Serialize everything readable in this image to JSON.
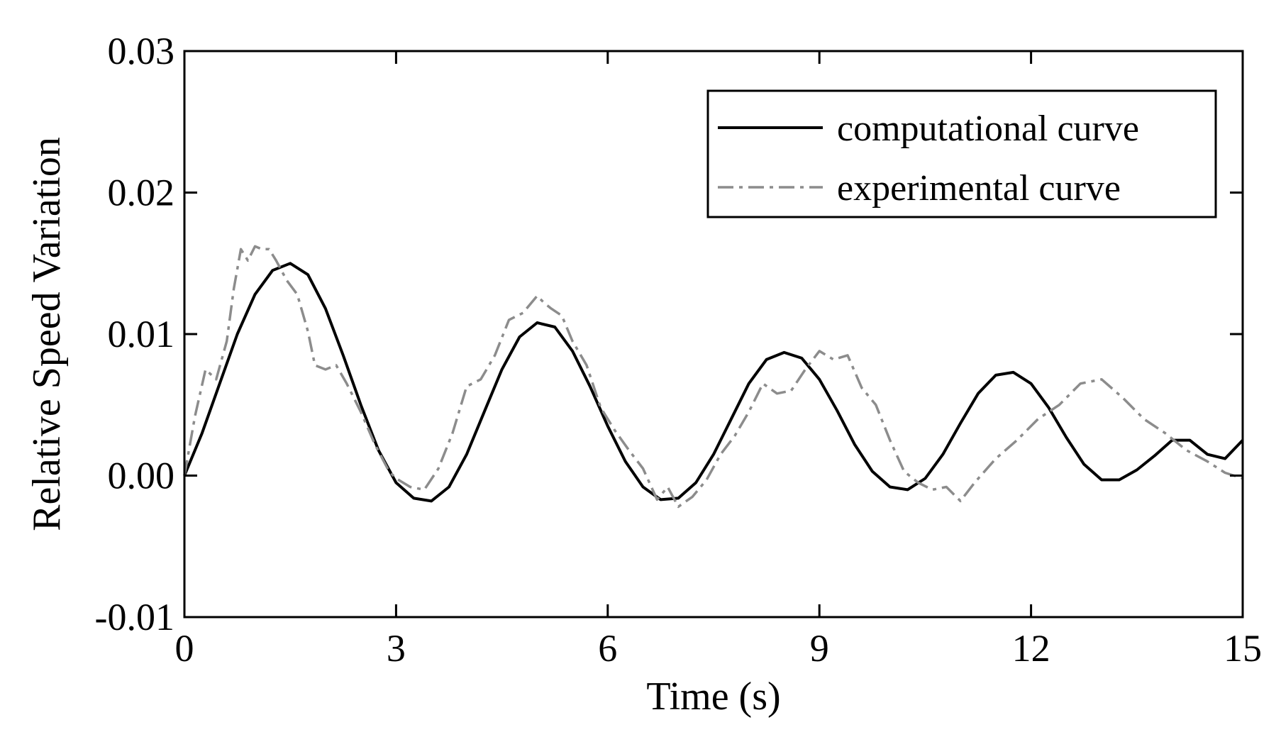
{
  "chart_data": {
    "type": "line",
    "title": "",
    "xlabel": "Time (s)",
    "ylabel": "Relative Speed Variation",
    "xlim": [
      0,
      15
    ],
    "ylim": [
      -0.01,
      0.03
    ],
    "x_ticks": [
      0,
      3,
      6,
      9,
      12,
      15
    ],
    "x_tick_labels": [
      "0",
      "3",
      "6",
      "9",
      "12",
      "15"
    ],
    "y_ticks": [
      -0.01,
      0.0,
      0.01,
      0.02,
      0.03
    ],
    "y_tick_labels": [
      "-0.01",
      "0.00",
      "0.01",
      "0.02",
      "0.03"
    ],
    "grid": false,
    "legend_position": "top-right",
    "series": [
      {
        "name": "computational curve",
        "style": "solid",
        "color": "#000000",
        "x": [
          0,
          0.25,
          0.5,
          0.75,
          1.0,
          1.25,
          1.5,
          1.75,
          2.0,
          2.25,
          2.5,
          2.75,
          3.0,
          3.25,
          3.5,
          3.75,
          4.0,
          4.25,
          4.5,
          4.75,
          5.0,
          5.25,
          5.5,
          5.75,
          6.0,
          6.25,
          6.5,
          6.75,
          7.0,
          7.25,
          7.5,
          7.75,
          8.0,
          8.25,
          8.5,
          8.75,
          9.0,
          9.25,
          9.5,
          9.75,
          10.0,
          10.25,
          10.5,
          10.75,
          11.0,
          11.25,
          11.5,
          11.75,
          12.0,
          12.25,
          12.5,
          12.75,
          13.0,
          13.25,
          13.5,
          13.75,
          14.0,
          14.25,
          14.5,
          14.75,
          15.0
        ],
        "y": [
          0.0,
          0.003,
          0.0065,
          0.01,
          0.0128,
          0.0145,
          0.015,
          0.0142,
          0.0118,
          0.0085,
          0.005,
          0.0018,
          -0.0005,
          -0.0016,
          -0.0018,
          -0.0008,
          0.0015,
          0.0045,
          0.0075,
          0.0098,
          0.0108,
          0.0105,
          0.0088,
          0.0063,
          0.0035,
          0.001,
          -0.0008,
          -0.0017,
          -0.0016,
          -0.0005,
          0.0015,
          0.004,
          0.0065,
          0.0082,
          0.0087,
          0.0083,
          0.0068,
          0.0046,
          0.0022,
          0.0003,
          -0.0008,
          -0.001,
          -0.0002,
          0.0015,
          0.0037,
          0.0058,
          0.0071,
          0.0073,
          0.0065,
          0.0048,
          0.0027,
          0.0008,
          -0.0003,
          -0.0003,
          0.0004,
          0.0014,
          0.0025,
          0.0025,
          0.0015,
          0.0012,
          0.0025
        ]
      },
      {
        "name": "experimental curve",
        "style": "dash-dot",
        "color": "#8c8c8c",
        "x": [
          0,
          0.15,
          0.3,
          0.45,
          0.6,
          0.7,
          0.8,
          0.9,
          1.0,
          1.1,
          1.2,
          1.3,
          1.45,
          1.6,
          1.75,
          1.85,
          2.0,
          2.15,
          2.3,
          2.5,
          2.7,
          2.9,
          3.0,
          3.2,
          3.4,
          3.6,
          3.8,
          4.0,
          4.2,
          4.4,
          4.6,
          4.8,
          5.0,
          5.1,
          5.2,
          5.35,
          5.5,
          5.7,
          5.9,
          6.1,
          6.3,
          6.5,
          6.7,
          6.85,
          7.0,
          7.2,
          7.4,
          7.6,
          7.8,
          8.0,
          8.2,
          8.4,
          8.6,
          8.8,
          9.0,
          9.2,
          9.4,
          9.6,
          9.8,
          10.0,
          10.2,
          10.4,
          10.6,
          10.8,
          11.0,
          11.2,
          11.5,
          11.8,
          12.1,
          12.4,
          12.7,
          13.0,
          13.3,
          13.6,
          13.9,
          14.2,
          14.5,
          14.75,
          15.0
        ],
        "y": [
          0.0,
          0.0042,
          0.0075,
          0.0068,
          0.0095,
          0.0132,
          0.016,
          0.0152,
          0.0162,
          0.016,
          0.016,
          0.0152,
          0.0138,
          0.0128,
          0.0102,
          0.0078,
          0.0075,
          0.0078,
          0.0065,
          0.0045,
          0.0022,
          0.0003,
          -0.0002,
          -0.0008,
          -0.001,
          0.0005,
          0.003,
          0.0063,
          0.0068,
          0.0085,
          0.011,
          0.0115,
          0.0127,
          0.0122,
          0.0118,
          0.0113,
          0.0095,
          0.0078,
          0.0048,
          0.0032,
          0.0018,
          0.0005,
          -0.0017,
          -0.0008,
          -0.0022,
          -0.0015,
          -0.0003,
          0.0015,
          0.0028,
          0.0045,
          0.0065,
          0.0058,
          0.006,
          0.0075,
          0.0088,
          0.0082,
          0.0085,
          0.0062,
          0.005,
          0.0025,
          0.0003,
          -0.0005,
          -0.001,
          -0.0008,
          -0.0018,
          -0.0005,
          0.0012,
          0.0025,
          0.004,
          0.005,
          0.0065,
          0.0068,
          0.0055,
          0.004,
          0.003,
          0.0018,
          0.001,
          0.0002,
          -0.0002
        ]
      }
    ]
  }
}
